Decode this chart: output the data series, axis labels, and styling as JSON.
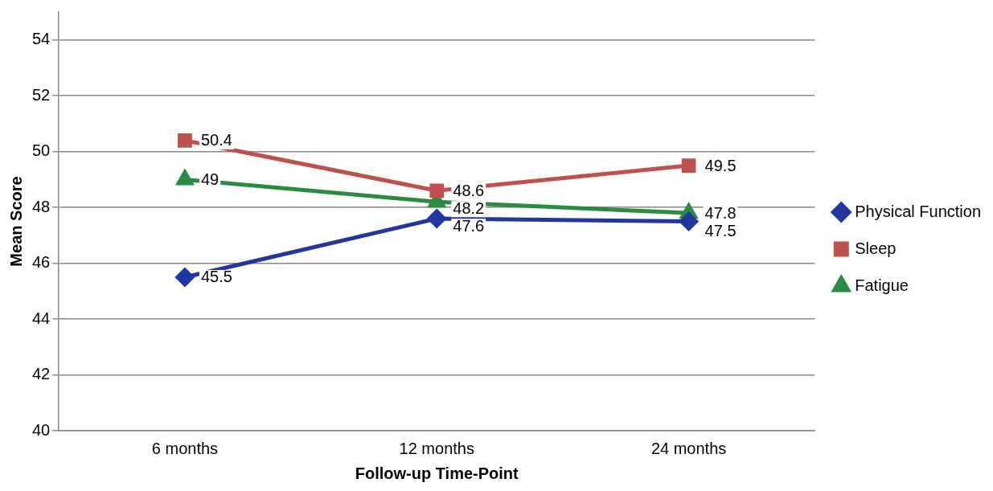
{
  "chart_data": {
    "type": "line",
    "xlabel": "Follow-up Time-Point",
    "ylabel": "Mean Score",
    "categories": [
      "6 months",
      "12 months",
      "24 months"
    ],
    "series": [
      {
        "name": "Physical Function",
        "color": "#2136a0",
        "values": [
          45.5,
          47.6,
          47.5
        ],
        "marker": "diamond"
      },
      {
        "name": "Sleep",
        "color": "#c0504d",
        "values": [
          50.4,
          48.6,
          49.5
        ],
        "marker": "square"
      },
      {
        "name": "Fatigue",
        "color": "#2a8c43",
        "values": [
          49,
          48.2,
          47.8
        ],
        "marker": "triangle"
      }
    ],
    "ylim": [
      40,
      55
    ],
    "yticks": [
      40,
      42,
      44,
      46,
      48,
      50,
      52,
      54
    ],
    "grid": "y",
    "legend": "right",
    "data_labels": true,
    "line_style": "solid"
  }
}
